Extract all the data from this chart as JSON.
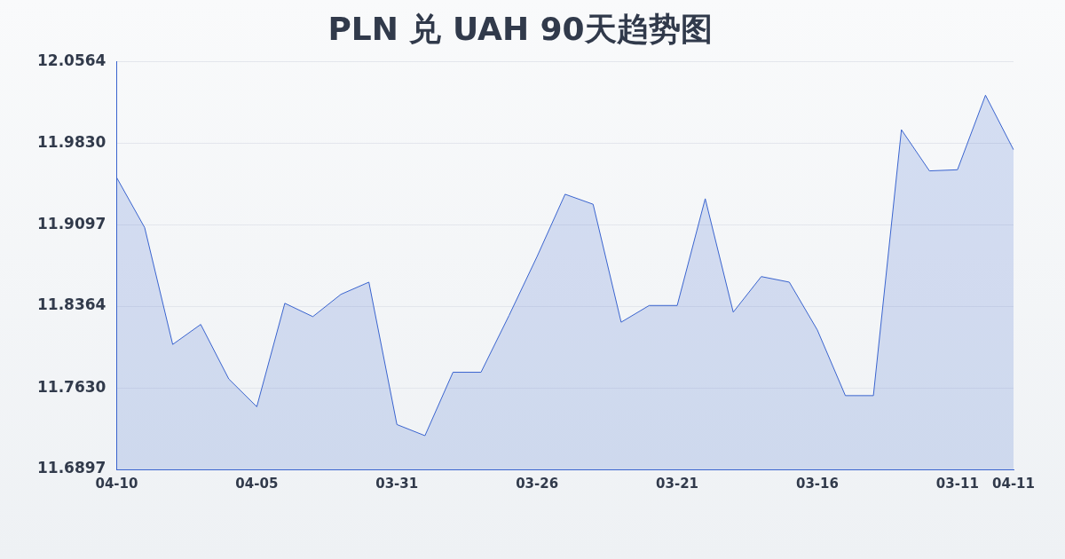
{
  "chart_data": {
    "type": "area",
    "title": "PLN 兑 UAH 90天趋势图",
    "categories": [
      "04-10",
      null,
      null,
      null,
      null,
      "04-05",
      null,
      null,
      null,
      null,
      "03-31",
      null,
      null,
      null,
      null,
      "03-26",
      null,
      null,
      null,
      null,
      "03-21",
      null,
      null,
      null,
      null,
      "03-16",
      null,
      null,
      null,
      null,
      "03-11",
      null,
      "04-11"
    ],
    "series": [
      {
        "color": "#3a64cf",
        "values": [
          11.952,
          11.907,
          11.802,
          11.82,
          11.771,
          11.746,
          11.839,
          11.827,
          11.847,
          11.858,
          11.73,
          11.72,
          11.777,
          11.777,
          11.828,
          11.881,
          11.937,
          11.928,
          11.822,
          11.837,
          11.837,
          11.933,
          11.831,
          11.863,
          11.858,
          11.815,
          11.756,
          11.756,
          11.995,
          11.958,
          11.959,
          12.026,
          11.977
        ]
      }
    ],
    "ylim": [
      11.6897,
      12.0564
    ],
    "yticks": [
      11.6897,
      {
        "value": 11.763,
        "label": "11.7630"
      },
      11.8364,
      11.9097,
      {
        "value": 11.983,
        "label": "11.9830"
      },
      12.0564
    ],
    "grid": "y",
    "legend": false,
    "marker": "none",
    "line_style": "solid"
  }
}
